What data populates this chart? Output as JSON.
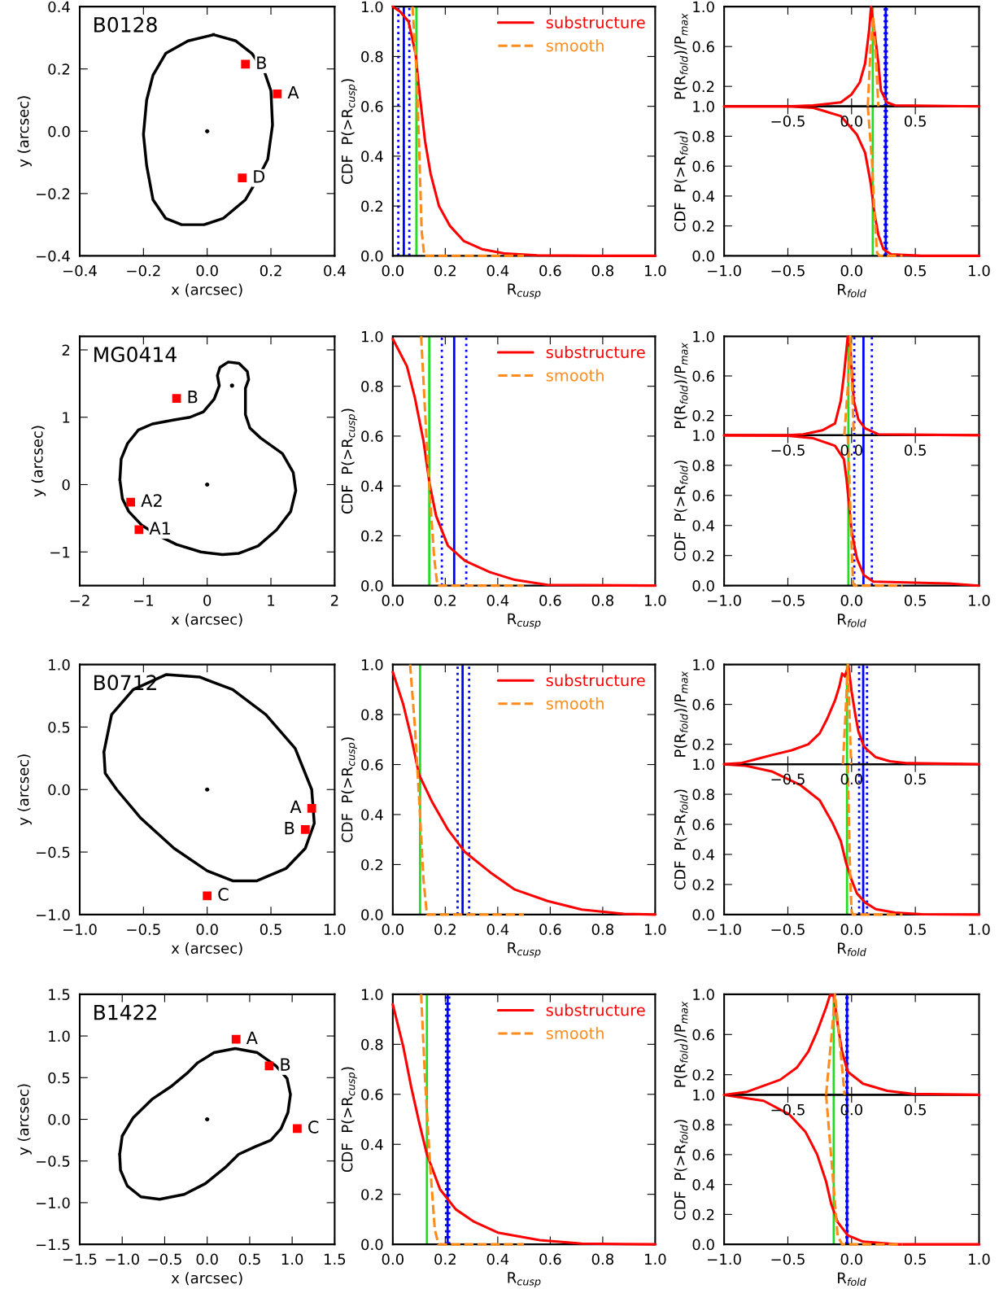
{
  "chart_data": [
    {
      "type": "scatter",
      "title": "B0128",
      "xlabel": "x (arcsec)",
      "ylabel": "y (arcsec)",
      "xlim": [
        -0.4,
        0.4
      ],
      "ylim": [
        -0.4,
        0.4
      ],
      "xticks": [
        {
          "value": -0.4,
          "label": "−0.4"
        },
        {
          "value": -0.2,
          "label": "−0.2"
        },
        {
          "value": 0,
          "label": "0.0"
        },
        0.2,
        0.4
      ],
      "yticks": [
        {
          "value": -0.4,
          "label": "−0.4"
        },
        {
          "value": -0.2,
          "label": "−0.2"
        },
        {
          "value": 0,
          "label": "0.0"
        },
        0.2,
        0.4
      ],
      "series": [
        {
          "type": "scatter",
          "marker": "square",
          "color": "#ff0000",
          "x": [
            0.22,
            0.12,
            0.11
          ],
          "values": [
            0.12,
            0.215,
            -0.15
          ]
        },
        {
          "type": "scatter",
          "marker": "circle",
          "color": "#000000",
          "x": [
            0.0
          ],
          "values": [
            0.0
          ]
        }
      ],
      "annotations": [
        {
          "text": "A",
          "x": 0.22,
          "y": 0.12
        },
        {
          "text": "B",
          "x": 0.12,
          "y": 0.215
        },
        {
          "text": "D",
          "x": 0.11,
          "y": -0.15
        }
      ]
    },
    {
      "type": "line",
      "xlabel": "R$_{cusp}$",
      "ylabel": "CDF  P(>R$_{cusp}$)",
      "xlim": [
        0,
        1
      ],
      "ylim": [
        0,
        1
      ],
      "xticks": [
        {
          "value": 0,
          "label": "0.0"
        },
        0.2,
        0.4,
        0.6,
        0.8,
        {
          "value": 1,
          "label": "1.0"
        }
      ],
      "yticks": [
        {
          "value": 0,
          "label": "0.0"
        },
        0.2,
        0.4,
        0.6,
        0.8,
        {
          "value": 1,
          "label": "1.0"
        }
      ],
      "legend": "top right",
      "series": [
        {
          "name": "substructure",
          "color": "#ff0000",
          "line_style": "solid",
          "x": [
            0,
            0.028,
            0.06,
            0.087,
            0.1,
            0.123,
            0.144,
            0.176,
            0.218,
            0.27,
            0.34,
            0.43,
            0.55,
            0.77,
            1.0
          ],
          "values": [
            1.0,
            0.98,
            0.94,
            0.81,
            0.67,
            0.46,
            0.33,
            0.2,
            0.12,
            0.06,
            0.027,
            0.009,
            0.002,
            0,
            0
          ]
        },
        {
          "name": "smooth",
          "color": "#ff8c1a",
          "line_style": "dashed",
          "x": [
            0.075,
            0.09,
            0.1,
            0.11,
            0.12,
            0.5
          ],
          "values": [
            1.0,
            0.75,
            0.45,
            0.1,
            0,
            0
          ]
        }
      ],
      "ref_lines": [
        {
          "axis": "x",
          "value": 0.021,
          "color": "#0000ff",
          "line_style": "dotted"
        },
        {
          "axis": "x",
          "value": 0.063,
          "color": "#0000ff",
          "line_style": "dotted"
        },
        {
          "axis": "x",
          "value": 0.042,
          "color": "#0000ff",
          "line_style": "solid"
        },
        {
          "axis": "x",
          "value": 0.09,
          "color": "#22dd22",
          "line_style": "solid"
        }
      ]
    },
    {
      "type": "line",
      "ylabel": "P(R$_{fold}$)/P$_{max}$",
      "xlim": [
        -1,
        1
      ],
      "ylim": [
        0,
        1
      ],
      "xticks": [
        {
          "value": -0.5,
          "label": "−0.5"
        },
        {
          "value": 0,
          "label": "0.0"
        },
        0.5
      ],
      "yticks": [
        0.2,
        0.6,
        {
          "value": 1,
          "label": "1.0"
        }
      ],
      "series": [
        {
          "color": "#ff0000",
          "line_style": "solid",
          "x": [
            -1,
            -0.5,
            -0.3,
            -0.085,
            0,
            0.064,
            0.106,
            0.138,
            0.153,
            0.18,
            0.21,
            0.23,
            0.276,
            0.34,
            1
          ],
          "values": [
            0,
            0,
            0.01,
            0.04,
            0.12,
            0.24,
            0.43,
            0.77,
            1.0,
            0.75,
            0.43,
            0.16,
            0.04,
            0.01,
            0
          ]
        },
        {
          "color": "#ff8c1a",
          "line_style": "dashed",
          "x": [
            0.127,
            0.149,
            0.17,
            0.19,
            0.21
          ],
          "values": [
            0,
            0.59,
            0.88,
            0.5,
            0
          ]
        }
      ],
      "ref_lines": [
        {
          "axis": "x",
          "value": 0.26,
          "color": "#0000ff",
          "line_style": "dotted"
        },
        {
          "axis": "x",
          "value": 0.276,
          "color": "#0000ff",
          "line_style": "dotted"
        },
        {
          "axis": "x",
          "value": 0.268,
          "color": "#0000ff",
          "line_style": "solid"
        },
        {
          "axis": "x",
          "value": 0.166,
          "color": "#22dd22",
          "line_style": "solid"
        }
      ]
    },
    {
      "type": "line",
      "xlabel": "R$_{fold}$",
      "ylabel": "CDF  P(>R$_{fold}$)",
      "xlim": [
        -1,
        1
      ],
      "ylim": [
        0,
        1
      ],
      "xticks": [
        {
          "value": -1,
          "label": "−1.0"
        },
        {
          "value": -0.5,
          "label": "−0.5"
        },
        {
          "value": 0,
          "label": "0.0"
        },
        0.5,
        {
          "value": 1,
          "label": "1.0"
        }
      ],
      "yticks": [
        {
          "value": 0,
          "label": "0.0"
        },
        0.2,
        0.4,
        0.6,
        0.8,
        {
          "value": 1,
          "label": "1.0"
        }
      ],
      "series": [
        {
          "color": "#ff0000",
          "line_style": "solid",
          "x": [
            -1,
            -0.5,
            -0.3,
            -0.085,
            0.042,
            0.106,
            0.149,
            0.18,
            0.21,
            0.25,
            0.31,
            0.55,
            1
          ],
          "values": [
            1.0,
            1.0,
            0.99,
            0.935,
            0.81,
            0.69,
            0.49,
            0.28,
            0.14,
            0.044,
            0.01,
            0,
            0
          ]
        },
        {
          "color": "#ff8c1a",
          "line_style": "dashed",
          "x": [
            0.127,
            0.16,
            0.18,
            0.2,
            0.22,
            0.4
          ],
          "values": [
            1.0,
            0.63,
            0.28,
            0.02,
            0,
            0
          ]
        }
      ],
      "ref_lines": [
        {
          "axis": "x",
          "value": 0.26,
          "color": "#0000ff",
          "line_style": "dotted"
        },
        {
          "axis": "x",
          "value": 0.276,
          "color": "#0000ff",
          "line_style": "dotted"
        },
        {
          "axis": "x",
          "value": 0.268,
          "color": "#0000ff",
          "line_style": "solid"
        },
        {
          "axis": "x",
          "value": 0.166,
          "color": "#22dd22",
          "line_style": "solid"
        }
      ]
    },
    {
      "type": "scatter",
      "title": "MG0414",
      "xlabel": "x (arcsec)",
      "ylabel": "y (arcsec)",
      "xlim": [
        -2,
        2
      ],
      "ylim": [
        -1.5,
        2.2
      ],
      "xticks": [
        {
          "value": -2,
          "label": "−2"
        },
        {
          "value": -1,
          "label": "−1"
        },
        0,
        1,
        2
      ],
      "yticks": [
        {
          "value": -1,
          "label": "−1"
        },
        0,
        1,
        2
      ],
      "series": [
        {
          "type": "scatter",
          "marker": "square",
          "color": "#ff0000",
          "x": [
            -0.48,
            -1.2,
            -1.07
          ],
          "values": [
            1.28,
            -0.26,
            -0.67
          ]
        },
        {
          "type": "scatter",
          "marker": "circle",
          "color": "#000000",
          "x": [
            0.0,
            0.39
          ],
          "values": [
            0.0,
            1.47
          ]
        }
      ],
      "annotations": [
        {
          "text": "B",
          "x": -0.48,
          "y": 1.28
        },
        {
          "text": "A2",
          "x": -1.2,
          "y": -0.26
        },
        {
          "text": "A1",
          "x": -1.07,
          "y": -0.67
        }
      ]
    },
    {
      "type": "line",
      "xlabel": "R$_{cusp}$",
      "ylabel": "CDF  P(>R$_{cusp}$)",
      "xlim": [
        0,
        1
      ],
      "ylim": [
        0,
        1
      ],
      "xticks": [
        {
          "value": 0,
          "label": "0.0"
        },
        0.2,
        0.4,
        0.6,
        0.8,
        {
          "value": 1,
          "label": "1.0"
        }
      ],
      "yticks": [
        {
          "value": 0,
          "label": "0.0"
        },
        0.2,
        0.4,
        0.6,
        0.8,
        {
          "value": 1,
          "label": "1.0"
        }
      ],
      "legend": "top right",
      "series": [
        {
          "name": "substructure",
          "color": "#ff0000",
          "line_style": "solid",
          "x": [
            0,
            0.054,
            0.085,
            0.117,
            0.14,
            0.165,
            0.21,
            0.275,
            0.37,
            0.465,
            0.59,
            1.0
          ],
          "values": [
            0.99,
            0.88,
            0.75,
            0.58,
            0.41,
            0.28,
            0.16,
            0.1,
            0.054,
            0.023,
            0.003,
            0
          ]
        },
        {
          "name": "smooth",
          "color": "#ff8c1a",
          "line_style": "dashed",
          "x": [
            0.108,
            0.127,
            0.142,
            0.158,
            0.17,
            0.5
          ],
          "values": [
            1.0,
            0.62,
            0.35,
            0.11,
            0,
            0
          ]
        }
      ],
      "ref_lines": [
        {
          "axis": "x",
          "value": 0.187,
          "color": "#0000ff",
          "line_style": "dotted"
        },
        {
          "axis": "x",
          "value": 0.28,
          "color": "#0000ff",
          "line_style": "dotted"
        },
        {
          "axis": "x",
          "value": 0.234,
          "color": "#0000ff",
          "line_style": "solid"
        },
        {
          "axis": "x",
          "value": 0.139,
          "color": "#22dd22",
          "line_style": "solid"
        }
      ]
    },
    {
      "type": "line",
      "ylabel": "P(R$_{fold}$)/P$_{max}$",
      "xlim": [
        -1,
        1
      ],
      "ylim": [
        0,
        1
      ],
      "xticks": [
        {
          "value": -0.5,
          "label": "−0.5"
        },
        {
          "value": 0,
          "label": "0.0"
        },
        0.5
      ],
      "yticks": [
        0.2,
        0.6,
        {
          "value": 1,
          "label": "1.0"
        }
      ],
      "series": [
        {
          "color": "#ff0000",
          "line_style": "solid",
          "x": [
            -1,
            -0.5,
            -0.38,
            -0.23,
            -0.13,
            -0.085,
            -0.06,
            -0.04,
            -0.03,
            -0.01,
            0.017,
            0.053,
            0.106,
            0.21,
            1
          ],
          "values": [
            0,
            0,
            0.01,
            0.05,
            0.12,
            0.35,
            0.61,
            0.87,
            1.0,
            0.87,
            0.35,
            0.16,
            0.07,
            0.01,
            0
          ]
        },
        {
          "color": "#ff8c1a",
          "line_style": "dashed",
          "x": [
            -0.057,
            -0.03,
            -0.01,
            0.004,
            0.017
          ],
          "values": [
            0,
            0.48,
            1.0,
            0.48,
            0
          ]
        }
      ],
      "ref_lines": [
        {
          "axis": "x",
          "value": 0.021,
          "color": "#0000ff",
          "line_style": "dotted"
        },
        {
          "axis": "x",
          "value": 0.159,
          "color": "#0000ff",
          "line_style": "dotted"
        },
        {
          "axis": "x",
          "value": 0.093,
          "color": "#0000ff",
          "line_style": "solid"
        },
        {
          "axis": "x",
          "value": -0.025,
          "color": "#22dd22",
          "line_style": "solid"
        }
      ]
    },
    {
      "type": "line",
      "xlabel": "R$_{fold}$",
      "ylabel": "CDF  P(>R$_{fold}$)",
      "xlim": [
        -1,
        1
      ],
      "ylim": [
        0,
        1
      ],
      "xticks": [
        {
          "value": -1,
          "label": "−1.0"
        },
        {
          "value": -0.5,
          "label": "−0.5"
        },
        {
          "value": 0,
          "label": "0.0"
        },
        0.5,
        {
          "value": 1,
          "label": "1.0"
        }
      ],
      "yticks": [
        {
          "value": 0,
          "label": "0.0"
        },
        0.2,
        0.4,
        0.6,
        0.8,
        {
          "value": 1,
          "label": "1.0"
        }
      ],
      "series": [
        {
          "color": "#ff0000",
          "line_style": "solid",
          "x": [
            -1,
            -0.5,
            -0.3,
            -0.13,
            -0.06,
            -0.04,
            -0.02,
            0,
            0.042,
            0.096,
            0.17,
            0.55,
            0.76,
            1.0
          ],
          "values": [
            1.0,
            0.997,
            0.98,
            0.93,
            0.84,
            0.71,
            0.54,
            0.36,
            0.18,
            0.07,
            0.027,
            0.018,
            0.014,
            0
          ]
        },
        {
          "color": "#ff8c1a",
          "line_style": "dashed",
          "x": [
            -0.03,
            -0.017,
            -0.004,
            0.011,
            0.02,
            0.4
          ],
          "values": [
            1.0,
            0.71,
            0.36,
            0.02,
            0,
            0
          ]
        }
      ],
      "ref_lines": [
        {
          "axis": "x",
          "value": 0.021,
          "color": "#0000ff",
          "line_style": "dotted"
        },
        {
          "axis": "x",
          "value": 0.159,
          "color": "#0000ff",
          "line_style": "dotted"
        },
        {
          "axis": "x",
          "value": 0.093,
          "color": "#0000ff",
          "line_style": "solid"
        },
        {
          "axis": "x",
          "value": -0.025,
          "color": "#22dd22",
          "line_style": "solid"
        }
      ]
    },
    {
      "type": "scatter",
      "title": "B0712",
      "xlabel": "x (arcsec)",
      "ylabel": "y (arcsec)",
      "xlim": [
        -1,
        1
      ],
      "ylim": [
        -1,
        1
      ],
      "xticks": [
        {
          "value": -1,
          "label": "−1.0"
        },
        {
          "value": -0.5,
          "label": "−0.5"
        },
        {
          "value": 0,
          "label": "0.0"
        },
        0.5,
        {
          "value": 1,
          "label": "1.0"
        }
      ],
      "yticks": [
        {
          "value": -1,
          "label": "−1.0"
        },
        {
          "value": -0.5,
          "label": "−0.5"
        },
        {
          "value": 0,
          "label": "0.0"
        },
        0.5,
        {
          "value": 1,
          "label": "1.0"
        }
      ],
      "series": [
        {
          "type": "scatter",
          "marker": "square",
          "color": "#ff0000",
          "x": [
            0.82,
            0.77,
            0.0
          ],
          "values": [
            -0.15,
            -0.32,
            -0.85
          ]
        },
        {
          "type": "scatter",
          "marker": "circle",
          "color": "#000000",
          "x": [
            0.0
          ],
          "values": [
            0.0
          ]
        }
      ],
      "annotations": [
        {
          "text": "A",
          "x": 0.82,
          "y": -0.15
        },
        {
          "text": "B",
          "x": 0.77,
          "y": -0.32
        },
        {
          "text": "C",
          "x": 0.0,
          "y": -0.85
        }
      ]
    },
    {
      "type": "line",
      "xlabel": "R$_{cusp}$",
      "ylabel": "CDF  P(>R$_{cusp}$)",
      "xlim": [
        0,
        1
      ],
      "ylim": [
        0,
        1
      ],
      "xticks": [
        {
          "value": 0,
          "label": "0.0"
        },
        0.2,
        0.4,
        0.6,
        0.8,
        {
          "value": 1,
          "label": "1.0"
        }
      ],
      "yticks": [
        {
          "value": 0,
          "label": "0.0"
        },
        0.2,
        0.4,
        0.6,
        0.8,
        {
          "value": 1,
          "label": "1.0"
        }
      ],
      "legend": "top right",
      "series": [
        {
          "name": "substructure",
          "color": "#ff0000",
          "line_style": "solid",
          "x": [
            0,
            0.04,
            0.07,
            0.1,
            0.15,
            0.21,
            0.275,
            0.37,
            0.465,
            0.59,
            0.72,
            0.88,
            1.0
          ],
          "values": [
            0.97,
            0.84,
            0.71,
            0.56,
            0.45,
            0.34,
            0.25,
            0.17,
            0.1,
            0.054,
            0.02,
            0.003,
            0
          ]
        },
        {
          "name": "smooth",
          "color": "#ff8c1a",
          "line_style": "dashed",
          "x": [
            0.066,
            0.085,
            0.1,
            0.117,
            0.13,
            0.5
          ],
          "values": [
            1.0,
            0.74,
            0.47,
            0.14,
            0,
            0
          ]
        }
      ],
      "ref_lines": [
        {
          "axis": "x",
          "value": 0.247,
          "color": "#0000ff",
          "line_style": "dotted"
        },
        {
          "axis": "x",
          "value": 0.291,
          "color": "#0000ff",
          "line_style": "dotted"
        },
        {
          "axis": "x",
          "value": 0.266,
          "color": "#0000ff",
          "line_style": "solid"
        },
        {
          "axis": "x",
          "value": 0.104,
          "color": "#22dd22",
          "line_style": "solid"
        }
      ]
    },
    {
      "type": "line",
      "ylabel": "P(R$_{fold}$)/P$_{max}$",
      "xlim": [
        -1,
        1
      ],
      "ylim": [
        0,
        1
      ],
      "xticks": [
        {
          "value": -0.5,
          "label": "−0.5"
        },
        {
          "value": 0,
          "label": "0.0"
        },
        0.5
      ],
      "yticks": [
        0.2,
        0.6,
        {
          "value": 1,
          "label": "1.0"
        }
      ],
      "series": [
        {
          "color": "#ff0000",
          "line_style": "solid",
          "x": [
            -1,
            -0.87,
            -0.72,
            -0.6,
            -0.47,
            -0.34,
            -0.25,
            -0.19,
            -0.13,
            -0.096,
            -0.074,
            -0.053,
            -0.025,
            0,
            0.03,
            0.053,
            0.096,
            0.127,
            0.19,
            0.3,
            0.44,
            1
          ],
          "values": [
            0,
            0.01,
            0.06,
            0.1,
            0.14,
            0.2,
            0.31,
            0.46,
            0.64,
            0.78,
            0.91,
            0.88,
            0.99,
            0.73,
            0.49,
            0.33,
            0.18,
            0.14,
            0.07,
            0.03,
            0.01,
            0
          ]
        },
        {
          "color": "#ff8c1a",
          "line_style": "dashed",
          "x": [
            -0.068,
            -0.047,
            -0.03,
            -0.017,
            -0.004
          ],
          "values": [
            0,
            0.52,
            1.0,
            0.52,
            0
          ]
        }
      ],
      "ref_lines": [
        {
          "axis": "x",
          "value": 0.059,
          "color": "#0000ff",
          "line_style": "dotted"
        },
        {
          "axis": "x",
          "value": 0.121,
          "color": "#0000ff",
          "line_style": "dotted"
        },
        {
          "axis": "x",
          "value": 0.091,
          "color": "#0000ff",
          "line_style": "solid"
        },
        {
          "axis": "x",
          "value": -0.036,
          "color": "#22dd22",
          "line_style": "solid"
        }
      ]
    },
    {
      "type": "line",
      "xlabel": "R$_{fold}$",
      "ylabel": "CDF  P(>R$_{fold}$)",
      "xlim": [
        -1,
        1
      ],
      "ylim": [
        0,
        1
      ],
      "xticks": [
        {
          "value": -1,
          "label": "−1.0"
        },
        {
          "value": -0.5,
          "label": "−0.5"
        },
        {
          "value": 0,
          "label": "0.0"
        },
        0.5,
        {
          "value": 1,
          "label": "1.0"
        }
      ],
      "yticks": [
        {
          "value": 0,
          "label": "0.0"
        },
        0.2,
        0.4,
        0.6,
        0.8,
        {
          "value": 1,
          "label": "1.0"
        }
      ],
      "series": [
        {
          "color": "#ff0000",
          "line_style": "solid",
          "x": [
            -1,
            -0.83,
            -0.62,
            -0.4,
            -0.25,
            -0.15,
            -0.085,
            -0.042,
            0,
            0.042,
            0.106,
            0.19,
            0.34,
            0.55,
            1
          ],
          "values": [
            1.0,
            0.99,
            0.95,
            0.86,
            0.76,
            0.61,
            0.49,
            0.34,
            0.23,
            0.14,
            0.08,
            0.036,
            0.013,
            0.002,
            0
          ]
        },
        {
          "color": "#ff8c1a",
          "line_style": "dashed",
          "x": [
            -0.03,
            -0.02,
            -0.01,
            0,
            0.01,
            0.4
          ],
          "values": [
            1.0,
            0.58,
            0.22,
            0.02,
            0,
            0
          ]
        }
      ],
      "ref_lines": [
        {
          "axis": "x",
          "value": 0.059,
          "color": "#0000ff",
          "line_style": "dotted"
        },
        {
          "axis": "x",
          "value": 0.121,
          "color": "#0000ff",
          "line_style": "dotted"
        },
        {
          "axis": "x",
          "value": 0.091,
          "color": "#0000ff",
          "line_style": "solid"
        },
        {
          "axis": "x",
          "value": -0.036,
          "color": "#22dd22",
          "line_style": "solid"
        }
      ]
    },
    {
      "type": "scatter",
      "title": "B1422",
      "xlabel": "x (arcsec)",
      "ylabel": "y (arcsec)",
      "xlim": [
        -1.5,
        1.5
      ],
      "ylim": [
        -1.5,
        1.5
      ],
      "xticks": [
        {
          "value": -1.5,
          "label": "−1.5"
        },
        {
          "value": -1,
          "label": "−1.0"
        },
        {
          "value": -0.5,
          "label": "−0.5"
        },
        {
          "value": 0,
          "label": "0.0"
        },
        0.5,
        {
          "value": 1,
          "label": "1.0"
        },
        1.5
      ],
      "yticks": [
        {
          "value": -1.5,
          "label": "−1.5"
        },
        {
          "value": -1,
          "label": "−1.0"
        },
        {
          "value": -0.5,
          "label": "−0.5"
        },
        {
          "value": 0,
          "label": "0.0"
        },
        0.5,
        {
          "value": 1,
          "label": "1.0"
        },
        1.5
      ],
      "series": [
        {
          "type": "scatter",
          "marker": "square",
          "color": "#ff0000",
          "x": [
            0.34,
            0.73,
            1.06
          ],
          "values": [
            0.96,
            0.64,
            -0.11
          ]
        },
        {
          "type": "scatter",
          "marker": "circle",
          "color": "#000000",
          "x": [
            0.0
          ],
          "values": [
            0.0
          ]
        }
      ],
      "annotations": [
        {
          "text": "A",
          "x": 0.34,
          "y": 0.96
        },
        {
          "text": "B",
          "x": 0.73,
          "y": 0.64
        },
        {
          "text": "C",
          "x": 1.06,
          "y": -0.11
        }
      ]
    },
    {
      "type": "line",
      "xlabel": "R$_{cusp}$",
      "ylabel": "CDF  P(>R$_{cusp}$)",
      "xlim": [
        0,
        1
      ],
      "ylim": [
        0,
        1
      ],
      "xticks": [
        {
          "value": 0,
          "label": "0.0"
        },
        0.2,
        0.4,
        0.6,
        0.8,
        {
          "value": 1,
          "label": "1.0"
        }
      ],
      "yticks": [
        {
          "value": 0,
          "label": "0.0"
        },
        0.2,
        0.4,
        0.6,
        0.8,
        {
          "value": 1,
          "label": "1.0"
        }
      ],
      "legend": "top right",
      "series": [
        {
          "name": "substructure",
          "color": "#ff0000",
          "line_style": "solid",
          "x": [
            0,
            0.04,
            0.07,
            0.1,
            0.13,
            0.18,
            0.24,
            0.31,
            0.4,
            0.56,
            0.72,
            1.0
          ],
          "values": [
            0.96,
            0.79,
            0.63,
            0.49,
            0.36,
            0.22,
            0.14,
            0.09,
            0.047,
            0.017,
            0.003,
            0
          ]
        },
        {
          "name": "smooth",
          "color": "#ff8c1a",
          "line_style": "dashed",
          "x": [
            0.108,
            0.123,
            0.142,
            0.16,
            0.174,
            0.5
          ],
          "values": [
            1.0,
            0.66,
            0.32,
            0.06,
            0,
            0
          ]
        }
      ],
      "ref_lines": [
        {
          "axis": "x",
          "value": 0.203,
          "color": "#0000ff",
          "line_style": "dotted"
        },
        {
          "axis": "x",
          "value": 0.215,
          "color": "#0000ff",
          "line_style": "dotted"
        },
        {
          "axis": "x",
          "value": 0.209,
          "color": "#0000ff",
          "line_style": "solid"
        },
        {
          "axis": "x",
          "value": 0.13,
          "color": "#22dd22",
          "line_style": "solid"
        }
      ]
    },
    {
      "type": "line",
      "ylabel": "P(R$_{fold}$)/P$_{max}$",
      "xlim": [
        -1,
        1
      ],
      "ylim": [
        0,
        1
      ],
      "xticks": [
        {
          "value": -0.5,
          "label": "−0.5"
        },
        {
          "value": 0,
          "label": "0.0"
        },
        0.5
      ],
      "yticks": [
        0.2,
        0.6,
        {
          "value": 1,
          "label": "1.0"
        }
      ],
      "series": [
        {
          "color": "#ff0000",
          "line_style": "solid",
          "x": [
            -1,
            -0.82,
            -0.56,
            -0.43,
            -0.34,
            -0.27,
            -0.2,
            -0.17,
            -0.14,
            -0.11,
            -0.075,
            -0.03,
            0.09,
            0.28,
            0.48,
            1
          ],
          "values": [
            0,
            0.03,
            0.15,
            0.27,
            0.43,
            0.63,
            0.87,
            0.99,
            0.99,
            0.71,
            0.43,
            0.23,
            0.11,
            0.04,
            0.01,
            0
          ]
        },
        {
          "color": "#ff8c1a",
          "line_style": "dashed",
          "x": [
            -0.2,
            -0.16,
            -0.13,
            -0.095,
            -0.055
          ],
          "values": [
            0,
            0.55,
            1.0,
            0.55,
            0
          ]
        }
      ],
      "ref_lines": [
        {
          "axis": "x",
          "value": -0.041,
          "color": "#0000ff",
          "line_style": "dotted"
        },
        {
          "axis": "x",
          "value": -0.031,
          "color": "#0000ff",
          "line_style": "dotted"
        },
        {
          "axis": "x",
          "value": -0.036,
          "color": "#0000ff",
          "line_style": "solid"
        },
        {
          "axis": "x",
          "value": -0.14,
          "color": "#22dd22",
          "line_style": "solid"
        }
      ]
    },
    {
      "type": "line",
      "xlabel": "R$_{fold}$",
      "ylabel": "CDF  P(>R$_{fold}$)",
      "xlim": [
        -1,
        1
      ],
      "ylim": [
        0,
        1
      ],
      "xticks": [
        {
          "value": -1,
          "label": "−1.0"
        },
        {
          "value": -0.5,
          "label": "−0.5"
        },
        {
          "value": 0,
          "label": "0.0"
        },
        0.5,
        {
          "value": 1,
          "label": "1.0"
        }
      ],
      "yticks": [
        {
          "value": 0,
          "label": "0.0"
        },
        0.2,
        0.4,
        0.6,
        0.8,
        {
          "value": 1,
          "label": "1.0"
        }
      ],
      "series": [
        {
          "color": "#ff0000",
          "line_style": "solid",
          "x": [
            -1,
            -0.69,
            -0.49,
            -0.36,
            -0.27,
            -0.2,
            -0.16,
            -0.11,
            -0.03,
            0.09,
            0.35,
            1
          ],
          "values": [
            1.0,
            0.96,
            0.87,
            0.75,
            0.6,
            0.42,
            0.27,
            0.15,
            0.06,
            0.018,
            0,
            0
          ]
        },
        {
          "color": "#ff8c1a",
          "line_style": "dashed",
          "x": [
            -0.2,
            -0.15,
            -0.11,
            -0.075,
            0.4
          ],
          "values": [
            1.0,
            0.48,
            0.06,
            0,
            0
          ]
        }
      ],
      "ref_lines": [
        {
          "axis": "x",
          "value": -0.041,
          "color": "#0000ff",
          "line_style": "dotted"
        },
        {
          "axis": "x",
          "value": -0.031,
          "color": "#0000ff",
          "line_style": "dotted"
        },
        {
          "axis": "x",
          "value": -0.036,
          "color": "#0000ff",
          "line_style": "solid"
        },
        {
          "axis": "x",
          "value": -0.14,
          "color": "#22dd22",
          "line_style": "solid"
        }
      ]
    }
  ]
}
